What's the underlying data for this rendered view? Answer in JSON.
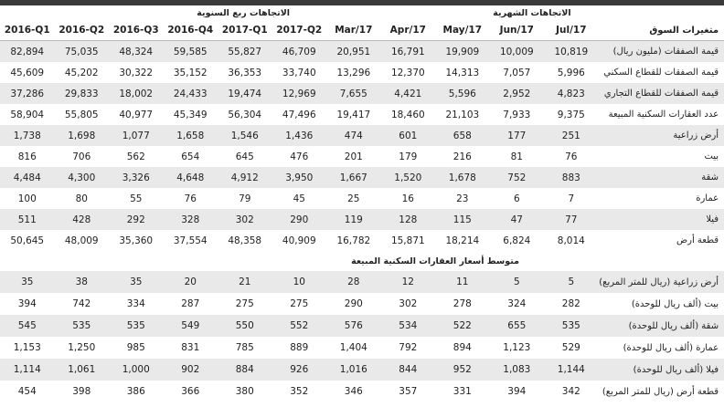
{
  "table": {
    "groups": {
      "quarterly": "الاتجاهات ربع السنوية",
      "monthly": "الاتجاهات الشهرية"
    },
    "columns": [
      "2016-Q1",
      "2016-Q2",
      "2016-Q3",
      "2016-Q4",
      "2017-Q1",
      "2017-Q2",
      "Mar/17",
      "Apr/17",
      "May/17",
      "Jun/17",
      "Jul/17"
    ],
    "label_header": "متغيرات السوق",
    "rows": [
      {
        "label": "قيمة الصفقات (مليون ريال)",
        "values": [
          "82,894",
          "75,035",
          "48,324",
          "59,585",
          "55,827",
          "46,709",
          "20,951",
          "16,791",
          "19,909",
          "10,009",
          "10,819"
        ]
      },
      {
        "label": "قيمة الصفقات للقطاع السكني",
        "values": [
          "45,609",
          "45,202",
          "30,322",
          "35,152",
          "36,353",
          "33,740",
          "13,296",
          "12,370",
          "14,313",
          "7,057",
          "5,996"
        ]
      },
      {
        "label": "قيمة الصفقات للقطاع التجاري",
        "values": [
          "37,286",
          "29,833",
          "18,002",
          "24,433",
          "19,474",
          "12,969",
          "7,655",
          "4,421",
          "5,596",
          "2,952",
          "4,823"
        ]
      },
      {
        "label": "عدد العقارات السكنية المبيعة",
        "values": [
          "58,904",
          "55,805",
          "40,977",
          "45,349",
          "56,304",
          "47,496",
          "19,417",
          "18,460",
          "21,103",
          "7,933",
          "9,375"
        ]
      },
      {
        "label": "أرض زراعية",
        "values": [
          "1,738",
          "1,698",
          "1,077",
          "1,658",
          "1,546",
          "1,436",
          "474",
          "601",
          "658",
          "177",
          "251"
        ]
      },
      {
        "label": "بيت",
        "values": [
          "816",
          "706",
          "562",
          "654",
          "645",
          "476",
          "201",
          "179",
          "216",
          "81",
          "76"
        ]
      },
      {
        "label": "شقة",
        "values": [
          "4,484",
          "4,300",
          "3,326",
          "4,648",
          "4,912",
          "3,950",
          "1,667",
          "1,520",
          "1,678",
          "752",
          "883"
        ]
      },
      {
        "label": "عمارة",
        "values": [
          "100",
          "80",
          "55",
          "76",
          "79",
          "45",
          "25",
          "16",
          "23",
          "6",
          "7"
        ]
      },
      {
        "label": "فيلا",
        "values": [
          "511",
          "428",
          "292",
          "328",
          "302",
          "290",
          "119",
          "128",
          "115",
          "47",
          "77"
        ]
      },
      {
        "label": "قطعة أرض",
        "values": [
          "50,645",
          "48,009",
          "35,360",
          "37,554",
          "48,358",
          "40,909",
          "16,782",
          "15,871",
          "18,214",
          "6,824",
          "8,014"
        ]
      }
    ],
    "section_title": "متوسط أسعار العقارات السكنية المبيعة",
    "price_rows": [
      {
        "label": "أرض زراعية (ريال للمتر المربع)",
        "values": [
          "35",
          "38",
          "35",
          "20",
          "21",
          "10",
          "28",
          "12",
          "11",
          "5",
          "5"
        ]
      },
      {
        "label": "بيت (ألف ريال للوحدة)",
        "values": [
          "394",
          "742",
          "334",
          "287",
          "275",
          "275",
          "290",
          "302",
          "278",
          "324",
          "282"
        ]
      },
      {
        "label": "شقة (ألف ريال للوحدة)",
        "values": [
          "545",
          "535",
          "535",
          "549",
          "550",
          "552",
          "576",
          "534",
          "522",
          "655",
          "535"
        ]
      },
      {
        "label": "عمارة (ألف ريال للوحدة)",
        "values": [
          "1,153",
          "1,250",
          "985",
          "831",
          "785",
          "889",
          "1,404",
          "792",
          "894",
          "1,123",
          "529"
        ]
      },
      {
        "label": "فيلا (ألف ريال للوحدة)",
        "values": [
          "1,114",
          "1,061",
          "1,000",
          "902",
          "884",
          "926",
          "1,016",
          "844",
          "952",
          "1,083",
          "1,144"
        ]
      },
      {
        "label": "قطعة أرض (ريال للمتر المربع)",
        "values": [
          "454",
          "398",
          "386",
          "366",
          "380",
          "352",
          "346",
          "357",
          "331",
          "394",
          "342"
        ]
      }
    ]
  }
}
